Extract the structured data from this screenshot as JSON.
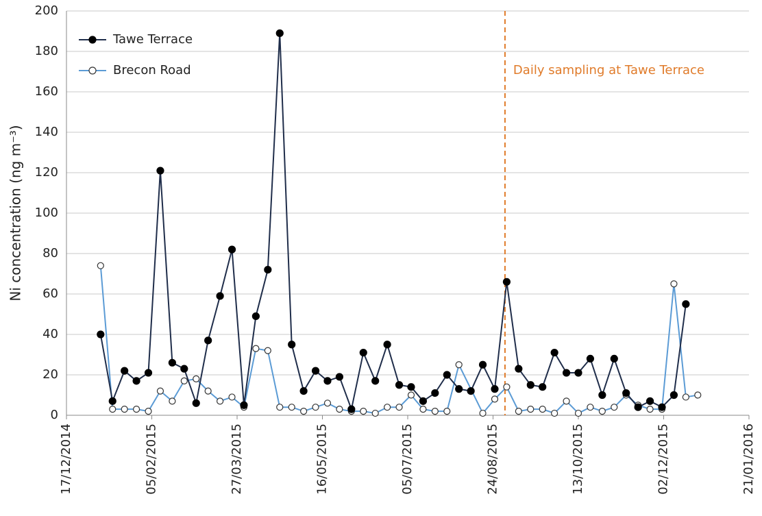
{
  "chart_data": {
    "type": "line",
    "y_label": "Ni concentration (ng m⁻³)",
    "xlim": [
      "2014-12-17",
      "2016-01-21"
    ],
    "xticks": [
      {
        "value": "2014-12-17",
        "label": "17/12/2014"
      },
      {
        "value": "2015-02-05",
        "label": "05/02/2015"
      },
      {
        "value": "2015-03-27",
        "label": "27/03/2015"
      },
      {
        "value": "2015-05-16",
        "label": "16/05/2015"
      },
      {
        "value": "2015-07-05",
        "label": "05/07/2015"
      },
      {
        "value": "2015-08-24",
        "label": "24/08/2015"
      },
      {
        "value": "2015-10-13",
        "label": "13/10/2015"
      },
      {
        "value": "2015-12-02",
        "label": "02/12/2015"
      },
      {
        "value": "2016-01-21",
        "label": "21/01/2016"
      }
    ],
    "ylim": [
      0,
      200
    ],
    "yticks": [
      0,
      20,
      40,
      60,
      80,
      100,
      120,
      140,
      160,
      180,
      200
    ],
    "grid": true,
    "legend": "upper left",
    "annotation": {
      "text": "Daily sampling at Tawe Terrace",
      "x": "2015-08-31",
      "color": "#e07b2a"
    },
    "series": [
      {
        "name": "Tawe Terrace",
        "color": "#1f2d4a",
        "marker": "filled",
        "x": [
          "2015-01-06",
          "2015-01-13",
          "2015-01-20",
          "2015-01-27",
          "2015-02-03",
          "2015-02-10",
          "2015-02-17",
          "2015-02-24",
          "2015-03-03",
          "2015-03-10",
          "2015-03-17",
          "2015-03-24",
          "2015-03-31",
          "2015-04-07",
          "2015-04-14",
          "2015-04-21",
          "2015-04-28",
          "2015-05-05",
          "2015-05-12",
          "2015-05-19",
          "2015-05-26",
          "2015-06-02",
          "2015-06-09",
          "2015-06-16",
          "2015-06-23",
          "2015-06-30",
          "2015-07-07",
          "2015-07-14",
          "2015-07-21",
          "2015-07-28",
          "2015-08-04",
          "2015-08-11",
          "2015-08-18",
          "2015-08-25",
          "2015-09-01",
          "2015-09-08",
          "2015-09-15",
          "2015-09-22",
          "2015-09-29",
          "2015-10-06",
          "2015-10-13",
          "2015-10-20",
          "2015-10-27",
          "2015-11-03",
          "2015-11-10",
          "2015-11-17",
          "2015-11-24",
          "2015-12-01",
          "2015-12-08",
          "2015-12-15"
        ],
        "values": [
          40,
          7,
          22,
          17,
          21,
          121,
          26,
          23,
          6,
          37,
          59,
          82,
          5,
          49,
          72,
          189,
          35,
          12,
          22,
          17,
          19,
          3,
          31,
          17,
          35,
          15,
          14,
          7,
          11,
          20,
          13,
          12,
          25,
          13,
          66,
          23,
          15,
          14,
          31,
          21,
          21,
          28,
          10,
          28,
          11,
          4,
          7,
          4,
          10,
          55
        ]
      },
      {
        "name": "Brecon Road",
        "color": "#5b9bd5",
        "marker": "open",
        "x": [
          "2015-01-06",
          "2015-01-13",
          "2015-01-20",
          "2015-01-27",
          "2015-02-03",
          "2015-02-10",
          "2015-02-17",
          "2015-02-24",
          "2015-03-03",
          "2015-03-10",
          "2015-03-17",
          "2015-03-24",
          "2015-03-31",
          "2015-04-07",
          "2015-04-14",
          "2015-04-21",
          "2015-04-28",
          "2015-05-05",
          "2015-05-12",
          "2015-05-19",
          "2015-05-26",
          "2015-06-02",
          "2015-06-09",
          "2015-06-16",
          "2015-06-23",
          "2015-06-30",
          "2015-07-07",
          "2015-07-14",
          "2015-07-21",
          "2015-07-28",
          "2015-08-04",
          "2015-08-18",
          "2015-08-25",
          "2015-09-01",
          "2015-09-08",
          "2015-09-15",
          "2015-09-22",
          "2015-09-29",
          "2015-10-06",
          "2015-10-13",
          "2015-10-20",
          "2015-10-27",
          "2015-11-03",
          "2015-11-10",
          "2015-11-17",
          "2015-11-24",
          "2015-12-01",
          "2015-12-08",
          "2015-12-15",
          "2015-12-22"
        ],
        "values": [
          74,
          3,
          3,
          3,
          2,
          12,
          7,
          17,
          18,
          12,
          7,
          9,
          4,
          33,
          32,
          4,
          4,
          2,
          4,
          6,
          3,
          2,
          2,
          1,
          4,
          4,
          10,
          3,
          2,
          2,
          25,
          1,
          8,
          14,
          2,
          3,
          3,
          1,
          7,
          1,
          4,
          2,
          4,
          10,
          5,
          3,
          3,
          65,
          9,
          10
        ]
      }
    ]
  }
}
